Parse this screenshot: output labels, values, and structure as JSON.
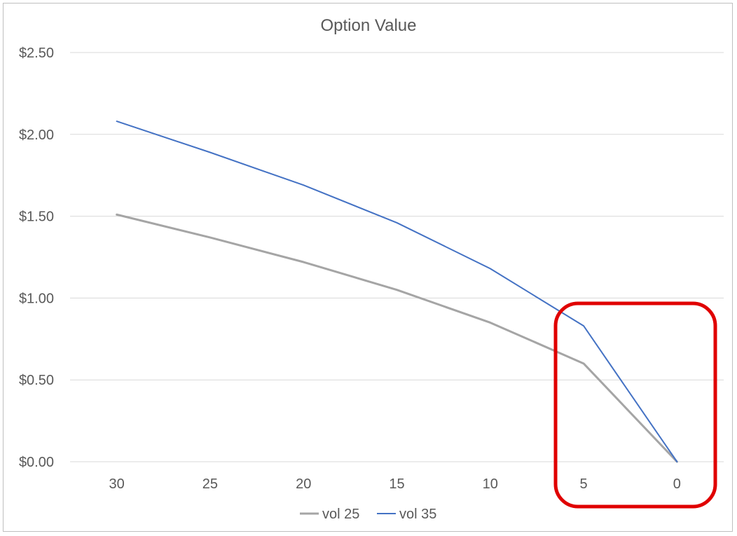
{
  "chart_data": {
    "type": "line",
    "title": "Option Value",
    "xlabel": "",
    "ylabel": "",
    "categories": [
      "30",
      "25",
      "20",
      "15",
      "10",
      "5",
      "0"
    ],
    "ylim": [
      0,
      2.5
    ],
    "yticks": [
      0,
      0.5,
      1.0,
      1.5,
      2.0,
      2.5
    ],
    "ytick_labels": [
      "$0.00",
      "$0.50",
      "$1.00",
      "$1.50",
      "$2.00",
      "$2.50"
    ],
    "grid": true,
    "legend_position": "bottom",
    "series": [
      {
        "name": "vol 25",
        "color": "#a5a5a5",
        "values": [
          1.51,
          1.37,
          1.22,
          1.05,
          0.85,
          0.6,
          0.0
        ]
      },
      {
        "name": "vol 35",
        "color": "#4472c4",
        "values": [
          2.08,
          1.89,
          1.69,
          1.46,
          1.18,
          0.83,
          0.0
        ]
      }
    ],
    "annotation": {
      "type": "highlight-box",
      "color": "#e00000",
      "covers_categories": [
        "5",
        "0"
      ]
    }
  }
}
